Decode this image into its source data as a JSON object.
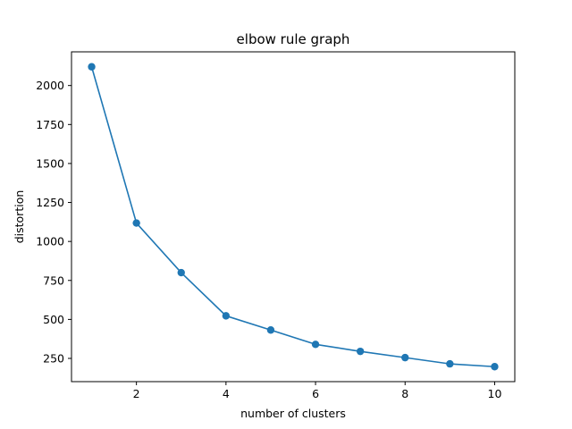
{
  "chart_data": {
    "type": "line",
    "title": "elbow rule graph",
    "xlabel": "number of clusters",
    "ylabel": "distortion",
    "x": [
      1,
      2,
      3,
      4,
      5,
      6,
      7,
      8,
      9,
      10
    ],
    "series": [
      {
        "values": [
          2120,
          1118,
          800,
          523,
          432,
          340,
          295,
          255,
          215,
          197
        ],
        "color": "#1f77b4",
        "marker": "circle"
      }
    ],
    "xticks": [
      2,
      4,
      6,
      8,
      10
    ],
    "yticks": [
      250,
      500,
      750,
      1000,
      1250,
      1500,
      1750,
      2000
    ],
    "xlim": [
      0.55,
      10.45
    ],
    "ylim": [
      101,
      2216
    ],
    "grid": false,
    "legend": "none"
  }
}
